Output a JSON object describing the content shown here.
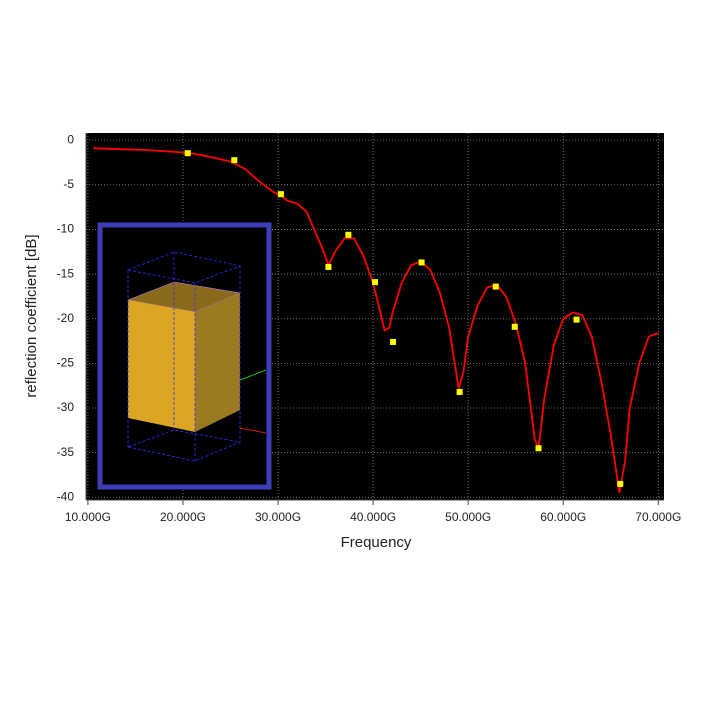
{
  "chart_data": {
    "type": "line",
    "x_label": "Frequency",
    "y_label": "reflection coefficient [dB]",
    "xlim": [
      9.8,
      70.6
    ],
    "ylim": [
      -40.3,
      0.8
    ],
    "xticks": [
      {
        "value": 10,
        "label": "10.000G"
      },
      {
        "value": 20,
        "label": "20.000G"
      },
      {
        "value": 30,
        "label": "30.000G"
      },
      {
        "value": 40,
        "label": "40.000G"
      },
      {
        "value": 50,
        "label": "50.000G"
      },
      {
        "value": 60,
        "label": "60.000G"
      },
      {
        "value": 70,
        "label": "70.000G"
      }
    ],
    "yticks": [
      0,
      -5,
      -10,
      -15,
      -20,
      -25,
      -30,
      -35,
      -40
    ],
    "grid": true,
    "background": "#000000",
    "series": [
      {
        "style": "line",
        "color": "#ff0000",
        "x": [
          10.6,
          13,
          16,
          19,
          21,
          23,
          25,
          26.5,
          28,
          29.5,
          30.3,
          31,
          32,
          33,
          34,
          34.8,
          35.3,
          36,
          37,
          38,
          39,
          40,
          40.7,
          41.2,
          41.7,
          42,
          43,
          44,
          45,
          46,
          47,
          48,
          49,
          49.5,
          50,
          51,
          52,
          53,
          54,
          55,
          56,
          57,
          57.4,
          58,
          59,
          60,
          61,
          62,
          63,
          64,
          65,
          65.9,
          66.5,
          67,
          68,
          69,
          70
        ],
        "values": [
          -0.9,
          -1.0,
          -1.1,
          -1.3,
          -1.5,
          -1.9,
          -2.4,
          -3.2,
          -4.6,
          -5.8,
          -6.2,
          -6.8,
          -7.1,
          -8,
          -10.5,
          -12.5,
          -14.0,
          -12.5,
          -11,
          -11,
          -13,
          -16,
          -19,
          -21.3,
          -21.0,
          -19.5,
          -16,
          -14,
          -13.6,
          -14.5,
          -17,
          -21,
          -27.8,
          -26,
          -22,
          -18.5,
          -16.5,
          -16.2,
          -17.5,
          -20.5,
          -25,
          -33.5,
          -34.5,
          -29,
          -23,
          -20,
          -19.3,
          -19.6,
          -22,
          -27,
          -33,
          -39.5,
          -36,
          -30,
          -25,
          -22,
          -21.6
        ]
      },
      {
        "style": "markers",
        "color": "#ffff00",
        "x": [
          20.5,
          25.4,
          30.3,
          35.3,
          37.4,
          40.2,
          42.1,
          45.1,
          49.1,
          52.9,
          54.9,
          57.4,
          61.4,
          66.0
        ],
        "values": [
          -1.46,
          -2.24,
          -6.05,
          -14.2,
          -10.6,
          -15.9,
          -22.6,
          -13.7,
          -28.2,
          -16.4,
          -20.9,
          -34.5,
          -20.1,
          -38.5
        ]
      }
    ]
  }
}
